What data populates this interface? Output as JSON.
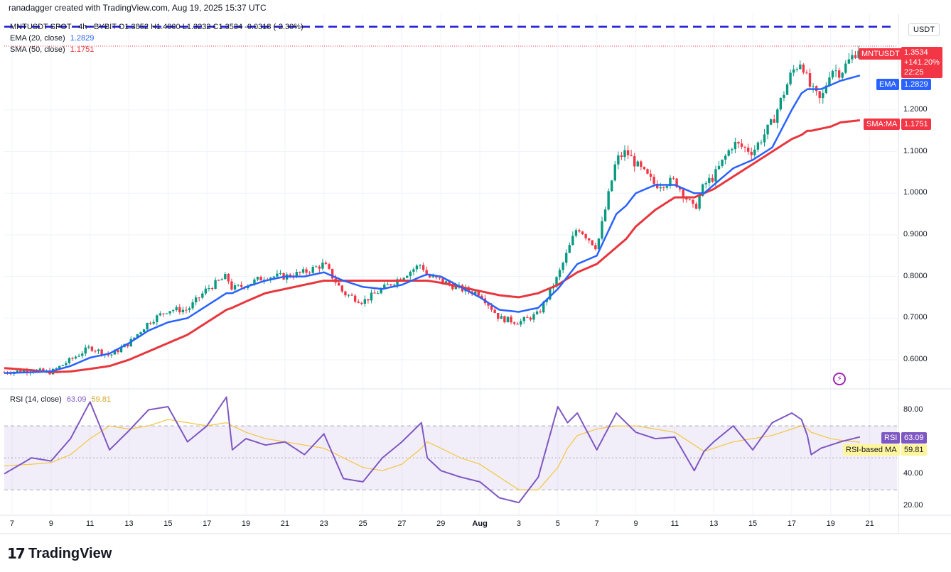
{
  "header": {
    "credit": "ranadagger created with TradingView.com, Aug 19, 2025 15:37 UTC",
    "symbol_line": "MNTUSDT SPOT · 4h · BYBIT  O1.3852 H1.4000 L1.3232 C1.3534 -0.0318 (-2.30%)",
    "ema_label": "EMA (20, close)",
    "ema_value": "1.2829",
    "sma_label": "SMA (50, close)",
    "sma_value": "1.1751"
  },
  "price_axis": {
    "currency": "USDT",
    "ticks": [
      "1.2000",
      "1.1000",
      "1.0000",
      "0.9000",
      "0.8000",
      "0.7000",
      "0.6000"
    ]
  },
  "tags": {
    "symbol": "MNTUSDT",
    "price": "1.3534",
    "change": "+141.20%",
    "countdown": "22:25",
    "ema_name": "EMA",
    "ema_val": "1.2829",
    "sma_name": "SMA:MA",
    "sma_val": "1.1751",
    "rsi_name": "RSI",
    "rsi_val": "63.09",
    "rsima_name": "RSI-based MA",
    "rsima_val": "59.81"
  },
  "rsi_panel": {
    "label": "RSI (14, close)",
    "value": "63.09",
    "ma_value": "59.81",
    "ticks": [
      "80.00",
      "40.00",
      "20.00"
    ]
  },
  "x_axis": {
    "ticks": [
      "7",
      "9",
      "11",
      "13",
      "15",
      "17",
      "19",
      "21",
      "23",
      "25",
      "27",
      "29",
      "Aug",
      "3",
      "5",
      "7",
      "9",
      "11",
      "13",
      "15",
      "17",
      "19",
      "21"
    ]
  },
  "footer": {
    "brand": "TradingView"
  },
  "colors": {
    "up": "#089981",
    "down": "#f23645",
    "ema": "#2962ff",
    "sma": "#e8363d",
    "rsi": "#7e57c2",
    "rsima": "#f2c94c",
    "resistance": "#1a1ad6"
  },
  "chart_data": {
    "type": "candlestick",
    "symbol": "MNTUSDT",
    "interval": "4h",
    "resistance_level": 1.4,
    "ylim": [
      0.53,
      1.43
    ],
    "rsi_ylim": [
      15,
      90
    ],
    "rsi_bands": [
      30,
      50,
      70
    ],
    "anchors": {
      "days": [
        6.6,
        8,
        9,
        10,
        11,
        12,
        13,
        14,
        15,
        16,
        17,
        18,
        18.3,
        19,
        20,
        21,
        22,
        23,
        24,
        25,
        26,
        27,
        28,
        28.3,
        29,
        30,
        31,
        32,
        33,
        34,
        35,
        35.5,
        36,
        37,
        38,
        38.5,
        39,
        40,
        41,
        42,
        42.5,
        43,
        44,
        45,
        46,
        47,
        47.5,
        47.8,
        48,
        48.5,
        49,
        49.5,
        50.5
      ],
      "close": [
        0.57,
        0.575,
        0.57,
        0.6,
        0.63,
        0.61,
        0.64,
        0.69,
        0.72,
        0.72,
        0.77,
        0.8,
        0.77,
        0.78,
        0.8,
        0.8,
        0.81,
        0.83,
        0.76,
        0.74,
        0.77,
        0.8,
        0.83,
        0.8,
        0.79,
        0.77,
        0.76,
        0.7,
        0.69,
        0.71,
        0.8,
        0.86,
        0.92,
        0.87,
        1.08,
        1.1,
        1.07,
        1.02,
        1.03,
        0.96,
        1.02,
        1.04,
        1.12,
        1.1,
        1.17,
        1.29,
        1.32,
        1.27,
        1.25,
        1.22,
        1.3,
        1.29,
        1.3534
      ],
      "ema": [
        0.568,
        0.57,
        0.572,
        0.585,
        0.605,
        0.615,
        0.64,
        0.67,
        0.69,
        0.7,
        0.73,
        0.76,
        0.76,
        0.775,
        0.79,
        0.8,
        0.8,
        0.81,
        0.79,
        0.775,
        0.77,
        0.78,
        0.8,
        0.805,
        0.8,
        0.775,
        0.75,
        0.72,
        0.715,
        0.725,
        0.77,
        0.8,
        0.83,
        0.85,
        0.95,
        0.97,
        1.0,
        1.02,
        1.02,
        1.0,
        1.0,
        1.02,
        1.06,
        1.08,
        1.11,
        1.2,
        1.24,
        1.25,
        1.25,
        1.25,
        1.26,
        1.27,
        1.2829
      ],
      "sma": [
        0.58,
        0.575,
        0.57,
        0.572,
        0.578,
        0.585,
        0.6,
        0.62,
        0.64,
        0.66,
        0.69,
        0.72,
        0.725,
        0.74,
        0.76,
        0.77,
        0.78,
        0.79,
        0.79,
        0.79,
        0.79,
        0.79,
        0.79,
        0.79,
        0.785,
        0.775,
        0.765,
        0.755,
        0.75,
        0.76,
        0.78,
        0.795,
        0.81,
        0.83,
        0.87,
        0.89,
        0.92,
        0.96,
        0.99,
        0.99,
        1.0,
        1.01,
        1.04,
        1.07,
        1.1,
        1.13,
        1.14,
        1.15,
        1.15,
        1.155,
        1.16,
        1.17,
        1.1751
      ],
      "rsi": [
        40,
        50,
        48,
        62,
        85,
        55,
        67,
        80,
        82,
        60,
        70,
        88,
        55,
        62,
        58,
        60,
        52,
        65,
        37,
        35,
        50,
        60,
        72,
        50,
        42,
        38,
        35,
        25,
        22,
        38,
        82,
        72,
        78,
        55,
        78,
        72,
        66,
        62,
        63,
        42,
        54,
        60,
        70,
        55,
        72,
        78,
        74,
        64,
        52,
        56,
        58,
        60,
        63.09
      ],
      "rsima": [
        45,
        46,
        47,
        52,
        62,
        70,
        68,
        70,
        74,
        72,
        70,
        72,
        70,
        66,
        62,
        60,
        58,
        56,
        50,
        44,
        42,
        46,
        56,
        60,
        56,
        50,
        46,
        38,
        30,
        30,
        44,
        56,
        64,
        68,
        70,
        70,
        70,
        68,
        66,
        58,
        54,
        56,
        60,
        62,
        64,
        68,
        70,
        68,
        66,
        64,
        62,
        61,
        59.81
      ]
    }
  }
}
